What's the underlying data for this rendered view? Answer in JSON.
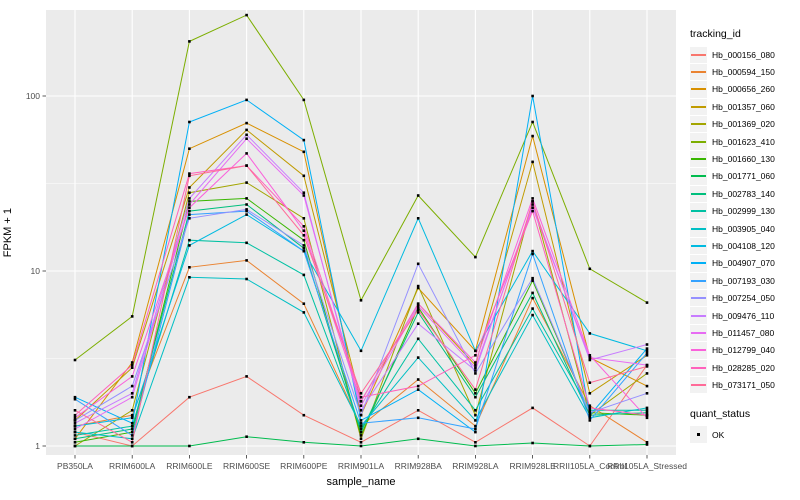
{
  "chart_data": {
    "type": "line",
    "xlabel": "sample_name",
    "ylabel": "FPKM + 1",
    "y_scale": "log10",
    "y_ticks": [
      1,
      10,
      100
    ],
    "y_minor": [
      3.162,
      31.62
    ],
    "ylim": [
      0.95,
      310
    ],
    "grid": true,
    "panel_bg": "#EBEBEB",
    "grid_color": "#FFFFFF",
    "axis_text_color": "#4D4D4D",
    "tick_color": "#333333",
    "point_color": "#000000",
    "legend_position": "right",
    "categories": [
      "PB350LA",
      "RRIM600LA",
      "RRIM600LE",
      "RRIM600SE",
      "RRIM600PE",
      "RRIM901LA",
      "RRIM928BA",
      "RRIM928LA",
      "RRIM928LE",
      "RRII105LA_Control",
      "RRII105LA_Stressed"
    ],
    "legend": {
      "color_title": "tracking_id",
      "shape_title": "quant_status",
      "shape_items": [
        {
          "label": "OK"
        }
      ]
    },
    "series": [
      {
        "name": "Hb_000156_080",
        "color": "#F8766D",
        "values": [
          1.2,
          1.0,
          1.9,
          2.5,
          1.5,
          1.05,
          1.6,
          1.05,
          1.65,
          1.0,
          2.9
        ]
      },
      {
        "name": "Hb_000594_150",
        "color": "#EA8331",
        "values": [
          1.3,
          1.5,
          10.5,
          11.5,
          6.5,
          1.3,
          2.4,
          1.3,
          7.0,
          1.7,
          1.05
        ]
      },
      {
        "name": "Hb_000656_260",
        "color": "#D89000",
        "values": [
          1.1,
          3.0,
          50,
          70,
          48,
          1.5,
          8.0,
          3.5,
          59,
          3.2,
          2.2
        ]
      },
      {
        "name": "Hb_001357_060",
        "color": "#C09B00",
        "values": [
          1.4,
          2.8,
          30,
          64,
          35,
          1.8,
          6.5,
          2.9,
          42,
          2.0,
          3.3
        ]
      },
      {
        "name": "Hb_001369_020",
        "color": "#A3A500",
        "values": [
          1.0,
          1.6,
          28,
          32,
          20,
          1.1,
          8.2,
          1.5,
          25,
          1.5,
          2.6
        ]
      },
      {
        "name": "Hb_001623_410",
        "color": "#7CAE00",
        "values": [
          3.1,
          5.5,
          205,
          290,
          95,
          6.8,
          27,
          12,
          71,
          10.3,
          6.6
        ]
      },
      {
        "name": "Hb_001660_130",
        "color": "#39B600",
        "values": [
          1.05,
          1.2,
          25,
          26,
          15,
          1.15,
          6.2,
          2.0,
          8.8,
          1.55,
          1.5
        ]
      },
      {
        "name": "Hb_001771_060",
        "color": "#00BB4E",
        "values": [
          1.0,
          1.0,
          1.0,
          1.13,
          1.05,
          1.0,
          1.1,
          1.0,
          1.04,
          1.0,
          1.02
        ]
      },
      {
        "name": "Hb_002783_140",
        "color": "#00BF7D",
        "values": [
          1.1,
          1.25,
          22,
          24,
          13.5,
          1.2,
          5.8,
          1.9,
          7.5,
          1.5,
          1.55
        ]
      },
      {
        "name": "Hb_002999_130",
        "color": "#00C1A3",
        "values": [
          1.15,
          1.3,
          15,
          14.5,
          9.5,
          1.25,
          4.1,
          1.6,
          6.1,
          1.6,
          1.6
        ]
      },
      {
        "name": "Hb_003905_040",
        "color": "#00BFC4",
        "values": [
          1.2,
          1.1,
          9.2,
          9.0,
          5.8,
          1.3,
          3.2,
          1.4,
          5.6,
          1.45,
          1.65
        ]
      },
      {
        "name": "Hb_004108_120",
        "color": "#00BAE0",
        "values": [
          1.3,
          1.45,
          14,
          21,
          13,
          3.5,
          20,
          3.5,
          13,
          4.4,
          3.5
        ]
      },
      {
        "name": "Hb_004907_070",
        "color": "#00B0F6",
        "values": [
          1.9,
          1.35,
          71,
          95,
          56,
          1.4,
          2.1,
          1.2,
          100,
          1.5,
          3.6
        ]
      },
      {
        "name": "Hb_007193_030",
        "color": "#35A2FF",
        "values": [
          1.85,
          1.15,
          21,
          22,
          13,
          1.35,
          1.45,
          1.25,
          12.5,
          1.4,
          3.4
        ]
      },
      {
        "name": "Hb_007254_050",
        "color": "#9590FF",
        "values": [
          1.4,
          2.2,
          20,
          22.5,
          14,
          1.5,
          11,
          2.6,
          9.1,
          1.55,
          2.0
        ]
      },
      {
        "name": "Hb_009476_110",
        "color": "#C77CFF",
        "values": [
          1.35,
          2.0,
          26,
          60,
          28,
          1.6,
          5.0,
          2.7,
          24,
          3.1,
          3.8
        ]
      },
      {
        "name": "Hb_011457_080",
        "color": "#E76BF3",
        "values": [
          1.25,
          1.9,
          24,
          57,
          27,
          1.7,
          6.3,
          2.8,
          23,
          3.2,
          2.9
        ]
      },
      {
        "name": "Hb_012799_040",
        "color": "#FA62DB",
        "values": [
          1.45,
          2.5,
          23,
          47,
          17,
          1.8,
          6.5,
          3.0,
          26,
          3.3,
          1.45
        ]
      },
      {
        "name": "Hb_028285_020",
        "color": "#FF62BC",
        "values": [
          1.5,
          2.9,
          36,
          40,
          18,
          1.9,
          2.2,
          3.3,
          22,
          1.65,
          1.5
        ]
      },
      {
        "name": "Hb_073171_050",
        "color": "#FF6A98",
        "values": [
          1.6,
          1.05,
          35,
          40,
          16,
          2.0,
          6.0,
          2.1,
          25,
          2.3,
          2.85
        ]
      }
    ]
  }
}
